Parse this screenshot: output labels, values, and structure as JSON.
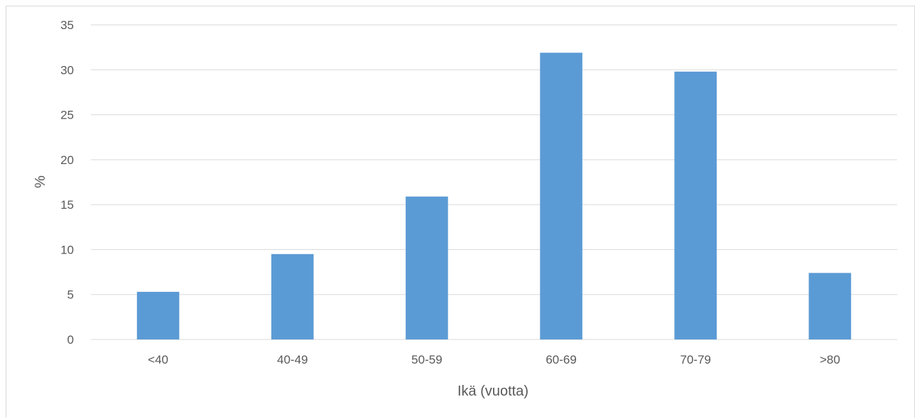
{
  "chart_data": {
    "type": "bar",
    "categories": [
      "<40",
      "40-49",
      "50-59",
      "60-69",
      "70-79",
      ">80"
    ],
    "values": [
      5.3,
      9.5,
      15.9,
      31.9,
      29.8,
      7.4
    ],
    "xlabel": "Ikä (vuotta)",
    "ylabel": "%",
    "ylim": [
      0,
      35
    ],
    "yticks": [
      "0",
      "5",
      "10",
      "15",
      "20",
      "25",
      "30",
      "35"
    ],
    "grid": true,
    "bar_color": "#5b9bd5",
    "grid_color": "#d9d9d9",
    "text_color": "#595959"
  }
}
